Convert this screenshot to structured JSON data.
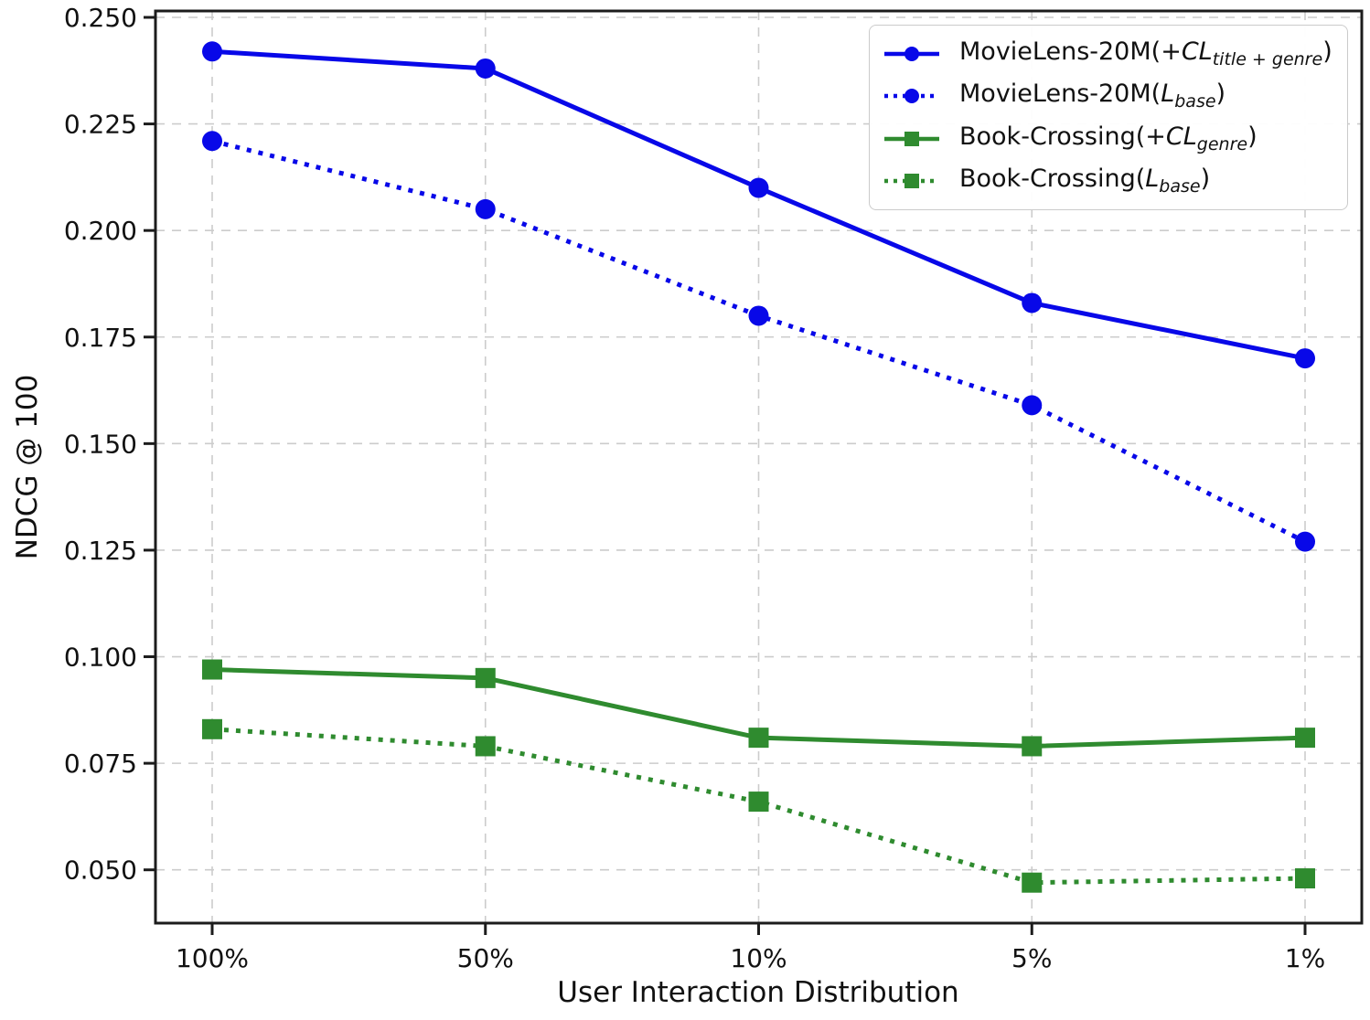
{
  "chart_data": {
    "type": "line",
    "title": "",
    "xlabel": "User Interaction Distribution",
    "ylabel": "NDCG @ 100",
    "categories": [
      "100%",
      "50%",
      "10%",
      "5%",
      "1%"
    ],
    "yticks": [
      "0.050",
      "0.075",
      "0.100",
      "0.125",
      "0.150",
      "0.175",
      "0.200",
      "0.225",
      "0.250"
    ],
    "ylim": [
      0.0375,
      0.2515
    ],
    "grid": true,
    "legend_position": "upper right",
    "colors": {
      "movielens_blue": "#0808e8",
      "bookcrossing_green": "#2f8b2f",
      "gridline": "#cccccc",
      "spine": "#1c1c1c",
      "text": "#111111"
    },
    "series": [
      {
        "name": "MovieLens-20M(+CL_title+genre)",
        "color": "#0808e8",
        "line_style": "solid",
        "marker": "circle",
        "values": [
          0.242,
          0.238,
          0.21,
          0.183,
          0.17
        ],
        "label_parts": [
          {
            "t": "MovieLens-20M(+"
          },
          {
            "t": "CL",
            "s": "i"
          },
          {
            "t": "title + genre",
            "s": "sub"
          },
          {
            "t": ")"
          }
        ]
      },
      {
        "name": "MovieLens-20M(L_base)",
        "color": "#0808e8",
        "line_style": "dotted",
        "marker": "circle",
        "values": [
          0.221,
          0.205,
          0.18,
          0.159,
          0.127
        ],
        "label_parts": [
          {
            "t": "MovieLens-20M("
          },
          {
            "t": "L",
            "s": "i"
          },
          {
            "t": "base",
            "s": "sub"
          },
          {
            "t": ")"
          }
        ]
      },
      {
        "name": "Book-Crossing(+CL_genre)",
        "color": "#2f8b2f",
        "line_style": "solid",
        "marker": "square",
        "values": [
          0.097,
          0.095,
          0.081,
          0.079,
          0.081
        ],
        "label_parts": [
          {
            "t": "Book-Crossing(+"
          },
          {
            "t": "CL",
            "s": "i"
          },
          {
            "t": "genre",
            "s": "sub"
          },
          {
            "t": ")"
          }
        ]
      },
      {
        "name": "Book-Crossing(L_base)",
        "color": "#2f8b2f",
        "line_style": "dotted",
        "marker": "square",
        "values": [
          0.083,
          0.079,
          0.066,
          0.047,
          0.048
        ],
        "label_parts": [
          {
            "t": "Book-Crossing("
          },
          {
            "t": "L",
            "s": "i"
          },
          {
            "t": "base",
            "s": "sub"
          },
          {
            "t": ")"
          }
        ]
      }
    ]
  }
}
